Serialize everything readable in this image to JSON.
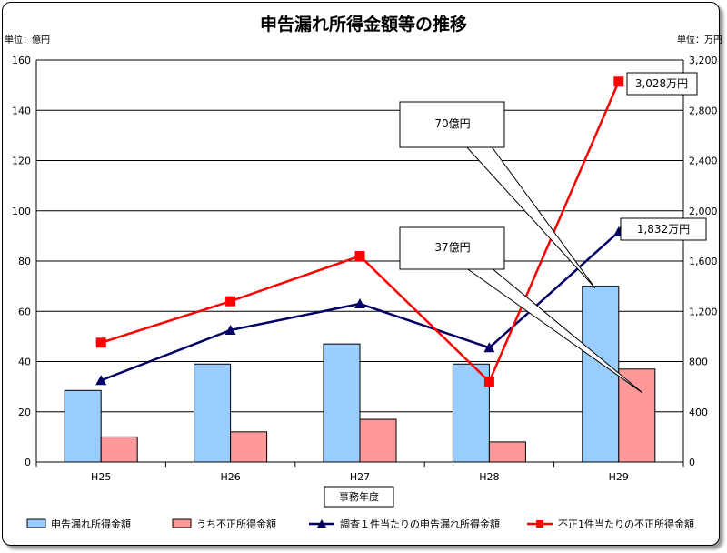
{
  "chart_data": {
    "type": "bar+line",
    "title": "申告漏れ所得金額等の推移",
    "y_left_unit": "単位：億円",
    "y_right_unit": "単位：万円",
    "xlabel": "事務年度",
    "categories": [
      "H25",
      "H26",
      "H27",
      "H28",
      "H29"
    ],
    "y_left": {
      "min": 0,
      "max": 160,
      "ticks": [
        0,
        20,
        40,
        60,
        80,
        100,
        120,
        140,
        160
      ]
    },
    "y_right": {
      "min": 0,
      "max": 3200,
      "ticks": [
        "0",
        "400",
        "800",
        "1,200",
        "1,600",
        "2,000",
        "2,400",
        "2,800",
        "3,200"
      ]
    },
    "grid": true,
    "legend_position": "bottom",
    "series": [
      {
        "name": "申告漏れ所得金額",
        "type": "bar",
        "axis": "left",
        "color": "#99ccff",
        "values": [
          28.5,
          39,
          47,
          39,
          70
        ]
      },
      {
        "name": "うち不正所得金額",
        "type": "bar",
        "axis": "left",
        "color": "#ff9999",
        "values": [
          10,
          12,
          17,
          8,
          37
        ]
      },
      {
        "name": "調査１件当たりの申告漏れ所得金額",
        "type": "line",
        "axis": "right",
        "color": "#000066",
        "marker": "triangle",
        "values": [
          650,
          1050,
          1260,
          910,
          1832
        ]
      },
      {
        "name": "不正1件当たりの不正所得金額",
        "type": "line",
        "axis": "right",
        "color": "#ff0000",
        "marker": "square",
        "values": [
          950,
          1280,
          1640,
          640,
          3028
        ]
      }
    ],
    "annotations": [
      {
        "text": "70億円",
        "target": "H29 申告漏れ所得金額"
      },
      {
        "text": "37億円",
        "target": "H29 うち不正所得金額"
      },
      {
        "text": "1,832万円",
        "target": "H29 調査１件当たりの申告漏れ所得金額"
      },
      {
        "text": "3,028万円",
        "target": "H29 不正1件当たりの不正所得金額"
      }
    ]
  }
}
